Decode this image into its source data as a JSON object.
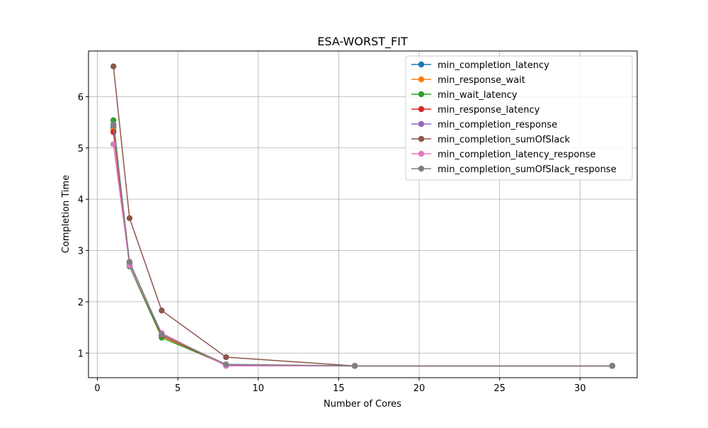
{
  "chart_data": {
    "type": "line",
    "title": "ESA-WORST_FIT",
    "xlabel": "Number of Cores",
    "ylabel": "Completion Time",
    "xlim": [
      -0.55,
      33.55
    ],
    "ylim": [
      0.52,
      6.89
    ],
    "xticks": [
      0,
      5,
      10,
      15,
      20,
      25,
      30
    ],
    "yticks": [
      1,
      2,
      3,
      4,
      5,
      6
    ],
    "grid": true,
    "legend_position": "upper right",
    "x": [
      1,
      2,
      4,
      8,
      16,
      32
    ],
    "series": [
      {
        "name": "min_completion_latency",
        "color": "#1f77b4",
        "values": [
          5.4,
          2.72,
          1.34,
          0.76,
          0.75,
          0.75
        ]
      },
      {
        "name": "min_response_wait",
        "color": "#ff7f0e",
        "values": [
          5.35,
          2.73,
          1.33,
          0.76,
          0.75,
          0.75
        ]
      },
      {
        "name": "min_wait_latency",
        "color": "#2ca02c",
        "values": [
          5.54,
          2.69,
          1.3,
          0.77,
          0.75,
          0.75
        ]
      },
      {
        "name": "min_response_latency",
        "color": "#d62728",
        "values": [
          5.31,
          2.74,
          1.35,
          0.76,
          0.75,
          0.75
        ]
      },
      {
        "name": "min_completion_response",
        "color": "#9467bd",
        "values": [
          5.45,
          2.75,
          1.36,
          0.77,
          0.75,
          0.75
        ]
      },
      {
        "name": "min_completion_sumOfSlack",
        "color": "#8c564b",
        "values": [
          6.59,
          3.63,
          1.83,
          0.92,
          0.75,
          0.75
        ]
      },
      {
        "name": "min_completion_latency_response",
        "color": "#e377c2",
        "values": [
          5.07,
          2.71,
          1.39,
          0.75,
          0.75,
          0.75
        ]
      },
      {
        "name": "min_completion_sumOfSlack_response",
        "color": "#7f7f7f",
        "values": [
          5.46,
          2.78,
          1.36,
          0.78,
          0.75,
          0.75
        ]
      }
    ]
  }
}
